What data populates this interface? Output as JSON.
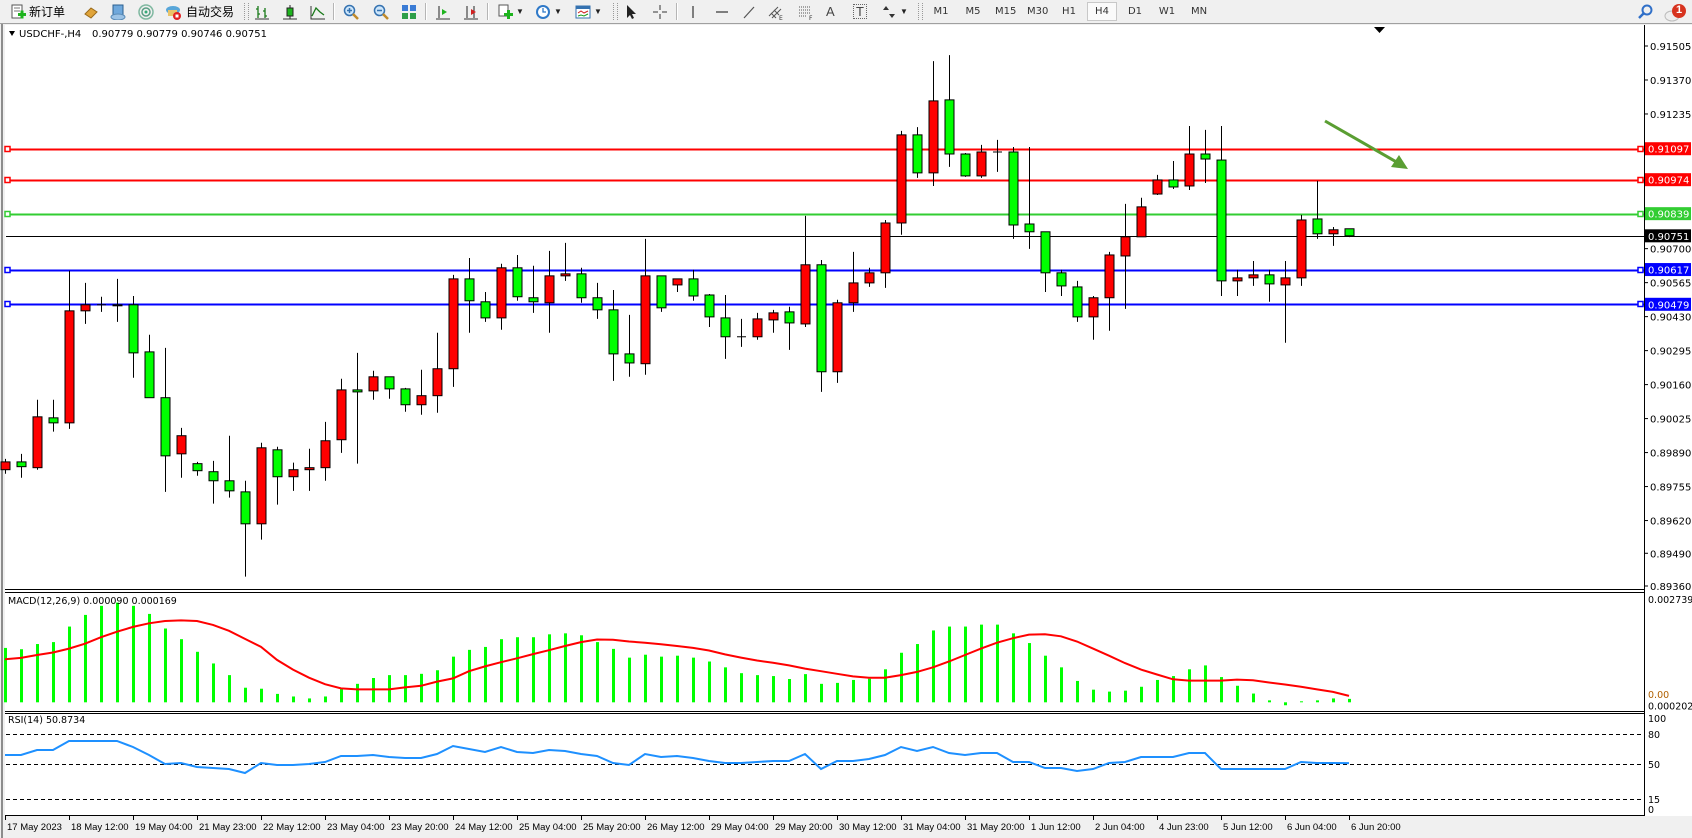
{
  "toolbar": {
    "new_order_label": "新订单",
    "auto_trading_label": "自动交易",
    "timeframes": [
      "M1",
      "M5",
      "M15",
      "M30",
      "H1",
      "H4",
      "D1",
      "W1",
      "MN"
    ],
    "active_timeframe": "H4",
    "notification_count": "1",
    "text_tool_label": "A",
    "label_tool_label": "T"
  },
  "chart_header": {
    "symbol": "USDCHF-,H4",
    "ohlc": "0.90779 0.90779 0.90746 0.90751"
  },
  "colors": {
    "bull_candle": "#ff0000",
    "bear_candle": "#00ff00",
    "macd_histogram": "#00ff00",
    "macd_signal": "#ff0000",
    "rsi_line": "#1e90ff",
    "arrow": "#5a9e32"
  },
  "chart_data": [
    {
      "type": "candlestick",
      "timeframe": "H4",
      "ylim": [
        0.8936,
        0.91505
      ],
      "y_tick_labels": [
        "0.91505",
        "0.91370",
        "0.91235",
        "0.90700",
        "0.90565",
        "0.90430",
        "0.90295",
        "0.90160",
        "0.90025",
        "0.89890",
        "0.89755",
        "0.89620",
        "0.89490",
        "0.89360"
      ],
      "x_labels": [
        "17 May 2023",
        "18 May 12:00",
        "19 May 04:00",
        "21 May 23:00",
        "22 May 12:00",
        "23 May 04:00",
        "23 May 20:00",
        "24 May 12:00",
        "25 May 04:00",
        "25 May 20:00",
        "26 May 12:00",
        "29 May 04:00",
        "29 May 20:00",
        "30 May 12:00",
        "31 May 04:00",
        "31 May 20:00",
        "1 Jun 12:00",
        "2 Jun 04:00",
        "4 Jun 23:00",
        "5 Jun 12:00",
        "6 Jun 04:00",
        "6 Jun 20:00"
      ],
      "candle_fields": [
        "open",
        "high",
        "low",
        "close"
      ],
      "candles": [
        [
          0.89822,
          0.89865,
          0.89806,
          0.89853
        ],
        [
          0.89853,
          0.89885,
          0.8979,
          0.89834
        ],
        [
          0.8983,
          0.901,
          0.89822,
          0.90032
        ],
        [
          0.90028,
          0.901,
          0.89973,
          0.90008
        ],
        [
          0.90008,
          0.90612,
          0.89984,
          0.90453
        ],
        [
          0.90453,
          0.90564,
          0.90401,
          0.90477
        ],
        [
          0.90477,
          0.90509,
          0.90449,
          0.90477
        ],
        [
          0.90477,
          0.9058,
          0.90409,
          0.90473
        ],
        [
          0.90477,
          0.90512,
          0.90187,
          0.90286
        ],
        [
          0.9029,
          0.90358,
          0.90108,
          0.90108
        ],
        [
          0.90108,
          0.90306,
          0.89734,
          0.89877
        ],
        [
          0.89885,
          0.89988,
          0.8979,
          0.89957
        ],
        [
          0.89846,
          0.89853,
          0.89798,
          0.89818
        ],
        [
          0.89814,
          0.89857,
          0.89687,
          0.89778
        ],
        [
          0.89778,
          0.89957,
          0.89711,
          0.89738
        ],
        [
          0.89734,
          0.89778,
          0.89397,
          0.89607
        ],
        [
          0.89607,
          0.89929,
          0.89544,
          0.89909
        ],
        [
          0.89901,
          0.89913,
          0.89683,
          0.89794
        ],
        [
          0.89794,
          0.8985,
          0.89738,
          0.89822
        ],
        [
          0.89822,
          0.89905,
          0.89738,
          0.8983
        ],
        [
          0.8983,
          0.90012,
          0.89778,
          0.89937
        ],
        [
          0.89941,
          0.90183,
          0.89889,
          0.90139
        ],
        [
          0.90139,
          0.90286,
          0.89846,
          0.90131
        ],
        [
          0.90135,
          0.90215,
          0.901,
          0.90191
        ],
        [
          0.90191,
          0.90191,
          0.90104,
          0.90143
        ],
        [
          0.90143,
          0.90147,
          0.90052,
          0.9008
        ],
        [
          0.9008,
          0.90219,
          0.9004,
          0.90116
        ],
        [
          0.90116,
          0.90366,
          0.90048,
          0.90223
        ],
        [
          0.90223,
          0.90596,
          0.90151,
          0.9058
        ],
        [
          0.9058,
          0.90663,
          0.90366,
          0.90493
        ],
        [
          0.90489,
          0.90528,
          0.90409,
          0.90425
        ],
        [
          0.90425,
          0.9064,
          0.90378,
          0.90624
        ],
        [
          0.90624,
          0.90675,
          0.90493,
          0.90509
        ],
        [
          0.90505,
          0.90632,
          0.90445,
          0.90489
        ],
        [
          0.90485,
          0.90691,
          0.90366,
          0.90592
        ],
        [
          0.90592,
          0.90723,
          0.90572,
          0.906
        ],
        [
          0.906,
          0.90624,
          0.90485,
          0.90505
        ],
        [
          0.90505,
          0.90564,
          0.90421,
          0.90457
        ],
        [
          0.90457,
          0.90536,
          0.90175,
          0.90282
        ],
        [
          0.90282,
          0.90437,
          0.90191,
          0.90246
        ],
        [
          0.90243,
          0.90739,
          0.90199,
          0.90592
        ],
        [
          0.90592,
          0.90592,
          0.90449,
          0.90465
        ],
        [
          0.90556,
          0.9058,
          0.90528,
          0.9058
        ],
        [
          0.9058,
          0.90616,
          0.90493,
          0.90512
        ],
        [
          0.90516,
          0.9052,
          0.90389,
          0.90429
        ],
        [
          0.90425,
          0.90516,
          0.90262,
          0.9035
        ],
        [
          0.9035,
          0.90421,
          0.9031,
          0.9035
        ],
        [
          0.9035,
          0.90445,
          0.90338,
          0.90421
        ],
        [
          0.90417,
          0.90457,
          0.90366,
          0.90445
        ],
        [
          0.90449,
          0.90469,
          0.90298,
          0.90405
        ],
        [
          0.90401,
          0.9083,
          0.90389,
          0.90636
        ],
        [
          0.90636,
          0.90655,
          0.90131,
          0.90211
        ],
        [
          0.90211,
          0.90497,
          0.90167,
          0.90485
        ],
        [
          0.90485,
          0.90687,
          0.90449,
          0.90564
        ],
        [
          0.90564,
          0.90624,
          0.90548,
          0.90604
        ],
        [
          0.90604,
          0.90814,
          0.90544,
          0.90802
        ],
        [
          0.90802,
          0.91168,
          0.90755,
          0.91152
        ],
        [
          0.91152,
          0.91183,
          0.90981,
          0.91001
        ],
        [
          0.91001,
          0.91445,
          0.90949,
          0.91287
        ],
        [
          0.91291,
          0.91469,
          0.91025,
          0.91076
        ],
        [
          0.91076,
          0.9108,
          0.90985,
          0.90989
        ],
        [
          0.90989,
          0.91112,
          0.90981,
          0.91084
        ],
        [
          0.91084,
          0.91132,
          0.91005,
          0.91084
        ],
        [
          0.91084,
          0.91104,
          0.90739,
          0.90794
        ],
        [
          0.90798,
          0.91104,
          0.90699,
          0.90767
        ],
        [
          0.90767,
          0.90767,
          0.90528,
          0.90604
        ],
        [
          0.90604,
          0.90616,
          0.90512,
          0.90552
        ],
        [
          0.90548,
          0.90572,
          0.90409,
          0.90429
        ],
        [
          0.90429,
          0.90512,
          0.90338,
          0.90505
        ],
        [
          0.90505,
          0.90687,
          0.90374,
          0.90675
        ],
        [
          0.90671,
          0.90878,
          0.90461,
          0.90747
        ],
        [
          0.90747,
          0.90902,
          0.90747,
          0.90866
        ],
        [
          0.90917,
          0.90993,
          0.90913,
          0.90973
        ],
        [
          0.90973,
          0.91048,
          0.90937,
          0.90945
        ],
        [
          0.90949,
          0.91187,
          0.90933,
          0.91076
        ],
        [
          0.91076,
          0.91172,
          0.90961,
          0.91056
        ],
        [
          0.91052,
          0.91187,
          0.90512,
          0.90572
        ],
        [
          0.90572,
          0.90616,
          0.90512,
          0.90584
        ],
        [
          0.90584,
          0.90651,
          0.90552,
          0.90596
        ],
        [
          0.90596,
          0.90616,
          0.90489,
          0.9056
        ],
        [
          0.90556,
          0.90651,
          0.90326,
          0.90584
        ],
        [
          0.90584,
          0.90834,
          0.90552,
          0.90814
        ],
        [
          0.90818,
          0.90969,
          0.90739,
          0.90759
        ],
        [
          0.90759,
          0.90786,
          0.90711,
          0.90775
        ],
        [
          0.90779,
          0.90779,
          0.90746,
          0.90751
        ]
      ],
      "price_lines": [
        {
          "price": 0.91097,
          "label": "0.91097",
          "color": "#ff0000"
        },
        {
          "price": 0.90974,
          "label": "0.90974",
          "color": "#ff0000"
        },
        {
          "price": 0.90839,
          "label": "0.90839",
          "color": "#32cd32"
        },
        {
          "price": 0.90617,
          "label": "0.90617",
          "color": "#0000ff"
        },
        {
          "price": 0.90479,
          "label": "0.90479",
          "color": "#0000ff"
        }
      ],
      "bid_line": {
        "price": 0.90751,
        "label": "0.90751",
        "color": "#000000"
      },
      "annotation": {
        "type": "arrow",
        "direction": "down-right",
        "color": "#5a9e32"
      }
    },
    {
      "type": "bar+line",
      "label": "MACD(12,26,9) 0.000090 0.000169",
      "ylim": [
        -0.000202,
        0.002739
      ],
      "y_tick_labels": [
        "0.002739",
        "0.00",
        "0.000202"
      ],
      "histogram": [
        0.001428,
        0.001394,
        0.00153,
        0.001581,
        0.001989,
        0.002295,
        0.002533,
        0.002618,
        0.002533,
        0.002321,
        0.001938,
        0.001658,
        0.001326,
        0.00102,
        0.000714,
        0.000383,
        0.000357,
        0.000221,
        0.000153,
        0.000102,
        0.000153,
        0.000357,
        0.000485,
        0.000638,
        0.000714,
        0.000714,
        0.000748,
        0.000842,
        0.001199,
        0.001377,
        0.001454,
        0.001658,
        0.001709,
        0.001709,
        0.001785,
        0.001811,
        0.00176,
        0.001581,
        0.001403,
        0.001173,
        0.00125,
        0.001199,
        0.001224,
        0.001173,
        0.001071,
        0.000918,
        0.000765,
        0.000714,
        0.000689,
        0.000612,
        0.00074,
        0.000485,
        0.00051,
        0.000587,
        0.000621,
        0.000867,
        0.001301,
        0.00153,
        0.001887,
        0.001989,
        0.001989,
        0.00204,
        0.00204,
        0.001811,
        0.001556,
        0.001224,
        0.000918,
        0.000561,
        0.000332,
        0.000281,
        0.000306,
        0.000408,
        0.000587,
        0.000689,
        0.000867,
        0.000969,
        0.000663,
        0.000434,
        0.00023,
        5.1e-05,
        -7.7e-05,
        2.6e-05,
        5.1e-05,
        0.000102,
        9e-05
      ],
      "signal": [
        0.001131,
        0.001165,
        0.001241,
        0.001309,
        0.001411,
        0.001539,
        0.001709,
        0.001853,
        0.001981,
        0.002074,
        0.002134,
        0.002151,
        0.002134,
        0.002032,
        0.001879,
        0.001666,
        0.001454,
        0.001114,
        0.000859,
        0.000646,
        0.000476,
        0.000366,
        0.00034,
        0.00034,
        0.00034,
        0.000391,
        0.000434,
        0.000544,
        0.000629,
        0.000816,
        0.000944,
        0.001054,
        0.001156,
        0.001267,
        0.001369,
        0.001479,
        0.001581,
        0.001649,
        0.001641,
        0.001598,
        0.001564,
        0.001522,
        0.001479,
        0.001428,
        0.00136,
        0.001258,
        0.001173,
        0.001097,
        0.001037,
        0.000969,
        0.000884,
        0.000816,
        0.000748,
        0.00068,
        0.000646,
        0.000646,
        0.000714,
        0.000799,
        0.000918,
        0.001071,
        0.001241,
        0.001411,
        0.001564,
        0.001683,
        0.001777,
        0.001785,
        0.001734,
        0.001598,
        0.001411,
        0.001224,
        0.001029,
        0.000859,
        0.000731,
        0.000604,
        0.00057,
        0.00057,
        0.00057,
        0.000595,
        0.000578,
        0.000519,
        0.000468,
        0.000408,
        0.00034,
        0.000272,
        0.000169
      ]
    },
    {
      "type": "line",
      "label": "RSI(14) 50.8734",
      "ylim": [
        0,
        100
      ],
      "levels": [
        80,
        50,
        15
      ],
      "y_tick_labels": [
        "100",
        "80",
        "50",
        "15",
        "0"
      ],
      "values": [
        59,
        59,
        64,
        64,
        73,
        73,
        73,
        73,
        67,
        59,
        50,
        51,
        47,
        46,
        45,
        41,
        51,
        49,
        49,
        50,
        52,
        58,
        58,
        59,
        57,
        56,
        56,
        60,
        68,
        65,
        62,
        67,
        62,
        61,
        64,
        63,
        60,
        58,
        51,
        49,
        60,
        57,
        58,
        56,
        53,
        51,
        51,
        52,
        53,
        53,
        60,
        45,
        53,
        53,
        55,
        59,
        67,
        63,
        67,
        61,
        59,
        61,
        61,
        52,
        52,
        46,
        46,
        43,
        45,
        51,
        52,
        57,
        57,
        57,
        61,
        61,
        45,
        45,
        45,
        45,
        45,
        52,
        51,
        51,
        50.87
      ]
    }
  ]
}
